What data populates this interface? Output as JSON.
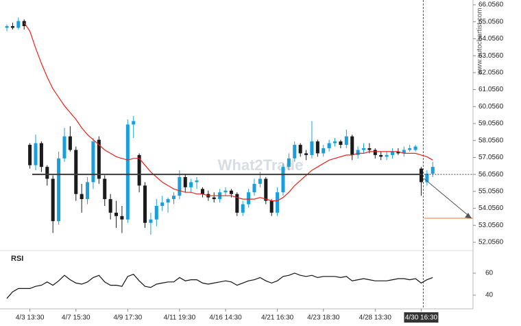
{
  "chart_data": {
    "type": "candlestick",
    "up_color": "#1a9fdb",
    "down_color": "#1b1b1b",
    "xlim": [
      -0.6,
      81
    ],
    "xticks": [
      {
        "value": 4,
        "label": "4/3 13:30"
      },
      {
        "value": 12,
        "label": "4/7 15:30"
      },
      {
        "value": 21,
        "label": "4/9 17:30"
      },
      {
        "value": 30,
        "label": "4/11 19:30"
      },
      {
        "value": 38,
        "label": "4/16 14:30"
      },
      {
        "value": 47,
        "label": "4/21 16:30"
      },
      {
        "value": 55,
        "label": "4/23 18:30"
      },
      {
        "value": 64,
        "label": "4/28 13:30"
      },
      {
        "value": 72,
        "label": "4/30 16:30"
      }
    ],
    "ylim": [
      51.57,
      66.34
    ],
    "yticks": [
      {
        "value": 52.056,
        "label": "52.0560"
      },
      {
        "value": 53.056,
        "label": "53.0560"
      },
      {
        "value": 54.056,
        "label": "54.0560"
      },
      {
        "value": 55.056,
        "label": "55.0560"
      },
      {
        "value": 56.056,
        "label": "56.0560"
      },
      {
        "value": 57.056,
        "label": "57.0560"
      },
      {
        "value": 58.056,
        "label": "58.0560"
      },
      {
        "value": 59.056,
        "label": "59.0560"
      },
      {
        "value": 60.056,
        "label": "60.0560"
      },
      {
        "value": 61.056,
        "label": "61.0560"
      },
      {
        "value": 62.056,
        "label": "62.0560"
      },
      {
        "value": 63.056,
        "label": "63.0560"
      },
      {
        "value": 64.056,
        "label": "64.0560"
      },
      {
        "value": 65.056,
        "label": "65.0560"
      },
      {
        "value": 66.056,
        "label": "66.0560"
      }
    ],
    "candles": [
      [
        64.7,
        64.9,
        64.5,
        64.8
      ],
      [
        64.8,
        65.0,
        64.6,
        64.7
      ],
      [
        64.7,
        65.3,
        64.6,
        65.1
      ],
      [
        65.1,
        65.2,
        64.6,
        64.8
      ],
      [
        57.8,
        57.9,
        56.4,
        56.6
      ],
      [
        56.6,
        58.4,
        56.3,
        57.9
      ],
      [
        57.9,
        58.0,
        56.2,
        56.5
      ],
      [
        56.5,
        56.6,
        55.4,
        55.8
      ],
      [
        55.8,
        56.0,
        52.6,
        53.3
      ],
      [
        53.3,
        57.4,
        53.1,
        57.0
      ],
      [
        57.0,
        58.8,
        56.8,
        58.3
      ],
      [
        58.3,
        58.9,
        57.4,
        57.5
      ],
      [
        57.5,
        57.7,
        54.5,
        54.9
      ],
      [
        54.9,
        55.5,
        53.8,
        54.6
      ],
      [
        54.6,
        55.9,
        54.3,
        55.6
      ],
      [
        55.6,
        58.2,
        55.2,
        58.0
      ],
      [
        58.1,
        58.3,
        55.5,
        55.8
      ],
      [
        55.8,
        56.0,
        54.2,
        54.6
      ],
      [
        54.6,
        54.9,
        53.4,
        53.8
      ],
      [
        53.8,
        54.5,
        52.9,
        53.6
      ],
      [
        53.6,
        54.2,
        52.6,
        53.4
      ],
      [
        53.4,
        59.3,
        53.2,
        59.0
      ],
      [
        59.0,
        59.5,
        58.2,
        59.2
      ],
      [
        57.2,
        57.3,
        55.0,
        55.4
      ],
      [
        55.4,
        55.6,
        52.9,
        53.2
      ],
      [
        53.2,
        53.8,
        52.5,
        53.4
      ],
      [
        53.4,
        54.6,
        53.0,
        54.2
      ],
      [
        54.2,
        54.8,
        53.9,
        54.4
      ],
      [
        54.4,
        54.7,
        53.8,
        54.6
      ],
      [
        54.6,
        55.0,
        54.3,
        54.8
      ],
      [
        54.8,
        56.3,
        54.6,
        55.9
      ],
      [
        55.9,
        56.1,
        55.0,
        55.3
      ],
      [
        55.3,
        55.8,
        55.0,
        55.6
      ],
      [
        55.6,
        55.9,
        55.2,
        55.7
      ],
      [
        55.2,
        55.3,
        54.7,
        54.9
      ],
      [
        54.9,
        55.1,
        54.5,
        54.7
      ],
      [
        54.7,
        55.0,
        54.4,
        54.6
      ],
      [
        54.6,
        55.2,
        54.4,
        55.0
      ],
      [
        55.0,
        55.3,
        54.8,
        55.1
      ],
      [
        55.1,
        55.2,
        54.7,
        54.9
      ],
      [
        54.9,
        55.0,
        53.6,
        53.8
      ],
      [
        53.8,
        54.5,
        53.6,
        54.3
      ],
      [
        54.3,
        55.2,
        54.1,
        55.0
      ],
      [
        55.0,
        55.8,
        54.8,
        55.5
      ],
      [
        55.5,
        56.2,
        55.3,
        55.8
      ],
      [
        55.8,
        55.9,
        54.3,
        54.5
      ],
      [
        54.5,
        54.6,
        53.6,
        53.8
      ],
      [
        53.8,
        55.3,
        53.6,
        55.0
      ],
      [
        55.0,
        56.7,
        54.8,
        56.5
      ],
      [
        56.5,
        57.3,
        56.3,
        57.0
      ],
      [
        57.0,
        58.0,
        56.8,
        57.8
      ],
      [
        57.8,
        57.9,
        57.1,
        57.3
      ],
      [
        57.3,
        57.5,
        56.9,
        57.2
      ],
      [
        57.2,
        59.2,
        57.0,
        58.0
      ],
      [
        58.0,
        58.1,
        57.1,
        57.3
      ],
      [
        57.3,
        57.8,
        57.1,
        57.6
      ],
      [
        57.6,
        58.1,
        57.4,
        57.9
      ],
      [
        57.9,
        58.2,
        57.7,
        58.0
      ],
      [
        58.0,
        58.1,
        57.6,
        57.8
      ],
      [
        57.8,
        58.7,
        57.6,
        58.3
      ],
      [
        58.3,
        58.4,
        56.9,
        57.2
      ],
      [
        57.2,
        57.7,
        57.0,
        57.5
      ],
      [
        57.5,
        57.9,
        57.3,
        57.6
      ],
      [
        57.6,
        57.9,
        57.3,
        57.5
      ],
      [
        57.5,
        57.6,
        57.0,
        57.2
      ],
      [
        57.2,
        57.4,
        56.9,
        57.1
      ],
      [
        57.1,
        57.4,
        56.9,
        57.2
      ],
      [
        57.2,
        57.6,
        57.0,
        57.4
      ],
      [
        57.4,
        57.6,
        57.2,
        57.3
      ],
      [
        57.3,
        57.7,
        57.1,
        57.5
      ],
      [
        57.5,
        57.8,
        57.4,
        57.6
      ],
      [
        57.5,
        57.8,
        57.4,
        57.7
      ],
      [
        56.4,
        56.5,
        54.8,
        55.6
      ],
      [
        55.6,
        56.3,
        55.4,
        56.1
      ],
      [
        56.1,
        56.8,
        55.9,
        56.5
      ]
    ],
    "ma": {
      "color": "#e8231b",
      "values": [
        null,
        null,
        null,
        65.0,
        64.5,
        63.5,
        62.6,
        61.8,
        61.1,
        60.6,
        60.1,
        59.7,
        59.3,
        58.8,
        58.4,
        58.1,
        57.8,
        57.5,
        57.3,
        57.1,
        57.0,
        56.9,
        57.0,
        57.0,
        56.6,
        56.2,
        55.9,
        55.6,
        55.4,
        55.2,
        55.1,
        55.0,
        55.0,
        54.9,
        54.9,
        54.8,
        54.8,
        54.8,
        54.8,
        54.8,
        54.7,
        54.6,
        54.6,
        54.6,
        54.7,
        54.6,
        54.5,
        54.5,
        54.7,
        55.0,
        55.4,
        55.7,
        56.0,
        56.3,
        56.5,
        56.7,
        56.9,
        57.0,
        57.1,
        57.2,
        57.2,
        57.3,
        57.3,
        57.4,
        57.4,
        57.4,
        57.4,
        57.4,
        57.4,
        57.3,
        57.3,
        57.3,
        57.2,
        57.1,
        56.9
      ]
    },
    "level": 56.056,
    "level_color": "#3a3a3a",
    "target": 53.47,
    "target_color": "#e8772e",
    "rsi": {
      "label": "RSI",
      "ylim": [
        27.5,
        77.5
      ],
      "yticks": [
        40,
        60
      ],
      "color": "#111111",
      "values": [
        37,
        43,
        46,
        46,
        46,
        48,
        49,
        52,
        49,
        53,
        58,
        54,
        51,
        50,
        52,
        56,
        58,
        52,
        49,
        49,
        48,
        57,
        59,
        53,
        48,
        47,
        50,
        51,
        52,
        52,
        56,
        53,
        54,
        54,
        51,
        50,
        51,
        52,
        53,
        52,
        49,
        51,
        53,
        54,
        56,
        53,
        51,
        53,
        57,
        58,
        60,
        58,
        57,
        58,
        56,
        57,
        57,
        57,
        56,
        57,
        53,
        54,
        55,
        54,
        53,
        53,
        53,
        54,
        55,
        55,
        54,
        55,
        51,
        54,
        56
      ]
    },
    "watermark": "What2Trade",
    "source": "www.autochartist.com"
  }
}
